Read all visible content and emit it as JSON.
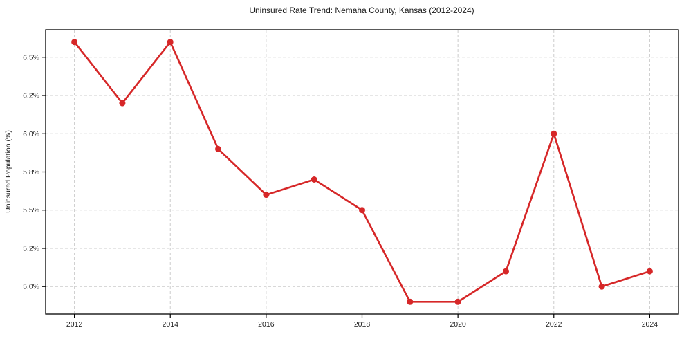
{
  "chart_data": {
    "type": "line",
    "title": "Uninsured Rate Trend: Nemaha County, Kansas (2012-2024)",
    "xlabel": "",
    "ylabel": "Uninsured Population (%)",
    "x": [
      2012,
      2013,
      2014,
      2015,
      2016,
      2017,
      2018,
      2019,
      2020,
      2021,
      2022,
      2023,
      2024
    ],
    "values": [
      6.6,
      6.2,
      6.6,
      5.9,
      5.6,
      5.7,
      5.5,
      4.9,
      4.9,
      5.1,
      6.0,
      5.0,
      5.1
    ],
    "series": [
      {
        "name": "Uninsured Population (%)",
        "values": [
          6.6,
          6.2,
          6.6,
          5.9,
          5.6,
          5.7,
          5.5,
          4.9,
          4.9,
          5.1,
          6.0,
          5.0,
          5.1
        ]
      }
    ],
    "x_ticks": [
      {
        "value": 2012,
        "label": "2012"
      },
      {
        "value": 2014,
        "label": "2014"
      },
      {
        "value": 2016,
        "label": "2016"
      },
      {
        "value": 2018,
        "label": "2018"
      },
      {
        "value": 2020,
        "label": "2020"
      },
      {
        "value": 2022,
        "label": "2022"
      },
      {
        "value": 2024,
        "label": "2024"
      }
    ],
    "y_ticks": [
      {
        "value": 5.0,
        "label": "5.0%"
      },
      {
        "value": 5.25,
        "label": "5.2%"
      },
      {
        "value": 5.5,
        "label": "5.5%"
      },
      {
        "value": 5.75,
        "label": "5.8%"
      },
      {
        "value": 6.0,
        "label": "6.0%"
      },
      {
        "value": 6.25,
        "label": "6.2%"
      },
      {
        "value": 6.5,
        "label": "6.5%"
      }
    ],
    "xlim": [
      2011.4,
      2024.6
    ],
    "ylim": [
      4.82,
      6.68
    ],
    "grid": true,
    "legend": "none",
    "colors": {
      "line": "#d62728",
      "marker": "#d62728",
      "gridline": "#cccccc",
      "frame": "#000000",
      "text": "#1a1a1a",
      "background": "#ffffff"
    }
  }
}
